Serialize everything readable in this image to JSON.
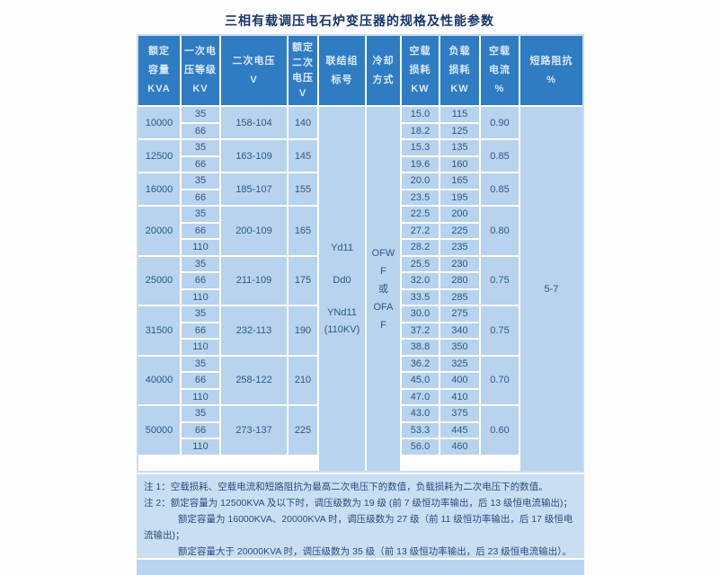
{
  "title": "三相有载调压电石炉变压器的规格及性能参数",
  "colors": {
    "header_bg": "#2f7cc3",
    "header_text": "#d9e8f7",
    "cell_bg": "#b7d3ee",
    "cell_text": "#2d5984",
    "notes_bg": "#c9def3",
    "title_text": "#17356b"
  },
  "table": {
    "headers": [
      {
        "lines": [
          "额定",
          "容量",
          "KVA"
        ]
      },
      {
        "lines": [
          "一次电",
          "压等级",
          "KV"
        ]
      },
      {
        "lines": [
          "二次电压",
          "V"
        ]
      },
      {
        "lines": [
          "额定",
          "二次",
          "电压",
          "V"
        ]
      },
      {
        "lines": [
          "联结组",
          "标号"
        ]
      },
      {
        "lines": [
          "冷却",
          "方式"
        ]
      },
      {
        "lines": [
          "空载",
          "损耗",
          "KW"
        ]
      },
      {
        "lines": [
          "负载",
          "损耗",
          "KW"
        ]
      },
      {
        "lines": [
          "空载",
          "电流",
          "%"
        ]
      },
      {
        "lines": [
          "短路阻抗",
          "%"
        ]
      }
    ],
    "groups": [
      {
        "capacity": "10000",
        "taps": [
          "35",
          "66"
        ],
        "secondary_v": "158-104",
        "rated_v": "140",
        "no_load_loss": [
          "15.0",
          "18.2"
        ],
        "load_loss": [
          "115",
          "125"
        ],
        "no_load_current": "0.90"
      },
      {
        "capacity": "12500",
        "taps": [
          "35",
          "66"
        ],
        "secondary_v": "163-109",
        "rated_v": "145",
        "no_load_loss": [
          "15.3",
          "19.6"
        ],
        "load_loss": [
          "135",
          "160"
        ],
        "no_load_current": "0.85"
      },
      {
        "capacity": "16000",
        "taps": [
          "35",
          "66"
        ],
        "secondary_v": "185-107",
        "rated_v": "155",
        "no_load_loss": [
          "20.0",
          "23.5"
        ],
        "load_loss": [
          "165",
          "195"
        ],
        "no_load_current": "0.85"
      },
      {
        "capacity": "20000",
        "taps": [
          "35",
          "66",
          "110"
        ],
        "secondary_v": "200-109",
        "rated_v": "165",
        "no_load_loss": [
          "22.5",
          "27.2",
          "28.2"
        ],
        "load_loss": [
          "200",
          "225",
          "235"
        ],
        "no_load_current": "0.80"
      },
      {
        "capacity": "25000",
        "taps": [
          "35",
          "66",
          "110"
        ],
        "secondary_v": "211-109",
        "rated_v": "175",
        "no_load_loss": [
          "25.5",
          "32.0",
          "33.5"
        ],
        "load_loss": [
          "230",
          "280",
          "285"
        ],
        "no_load_current": "0.75"
      },
      {
        "capacity": "31500",
        "taps": [
          "35",
          "66",
          "110"
        ],
        "secondary_v": "232-113",
        "rated_v": "190",
        "no_load_loss": [
          "30.0",
          "37.2",
          "38.8"
        ],
        "load_loss": [
          "275",
          "340",
          "350"
        ],
        "no_load_current": "0.75"
      },
      {
        "capacity": "40000",
        "taps": [
          "35",
          "66",
          "110"
        ],
        "secondary_v": "258-122",
        "rated_v": "210",
        "no_load_loss": [
          "36.2",
          "45.0",
          "47.0"
        ],
        "load_loss": [
          "325",
          "400",
          "410"
        ],
        "no_load_current": "0.70"
      },
      {
        "capacity": "50000",
        "taps": [
          "35",
          "66",
          "110"
        ],
        "secondary_v": "273-137",
        "rated_v": "225",
        "no_load_loss": [
          "43.0",
          "53.3",
          "56.0"
        ],
        "load_loss": [
          "375",
          "445",
          "460"
        ],
        "no_load_current": "0.60"
      }
    ],
    "connection_lines": [
      "Yd11",
      "Dd0",
      "YNd11",
      "(110KV)"
    ],
    "cooling_lines": [
      "OFW",
      "F",
      "或",
      "OFA",
      "F"
    ],
    "impedance": "5-7"
  },
  "notes": {
    "lines": [
      "注 1：空载损耗、空载电流和短路阻抗为最高二次电压下的数值，负载损耗为二次电压下的数值。",
      "注 2：额定容量为 12500KVA 及以下时，调压级数为 19 级 (前 7 级恒功率输出，后 13 级恒电流输出)；",
      "额定容量为 16000KVA、20000KVA 时，调压级数为 27 级（前 11 级恒功率输出，后 17 级恒电",
      "流输出)；",
      "额定容量大于 20000KVA 时，调压级数为 35 级（前 13 级恒功率输出，后 23 级恒电流输出）。"
    ]
  }
}
